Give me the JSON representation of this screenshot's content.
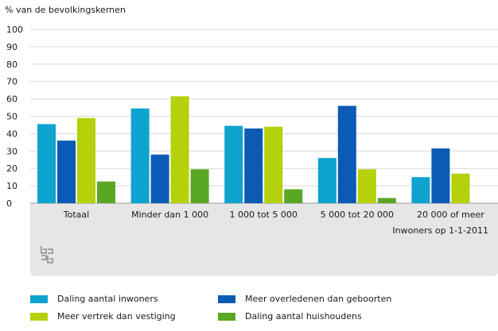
{
  "chart_data": {
    "type": "bar",
    "ylabel": "% van de bevolkingskernen",
    "xlabel": "Inwoners op 1-1-2011",
    "ylim": [
      0,
      100
    ],
    "yticks": [
      0,
      10,
      20,
      30,
      40,
      50,
      60,
      70,
      80,
      90,
      100
    ],
    "categories": [
      "Totaal",
      "Minder dan 1 000",
      "1 000 tot 5 000",
      "5 000 tot 20 000",
      "20 000 of meer"
    ],
    "series": [
      {
        "name": "Daling aantal inwoners",
        "color": "#0fa3cf",
        "values": [
          45.5,
          54.5,
          44.5,
          26,
          15
        ]
      },
      {
        "name": "Meer overledenen dan geboorten",
        "color": "#0b5bb5",
        "values": [
          36,
          28,
          43,
          56,
          31.5
        ]
      },
      {
        "name": "Meer vertrek dan vestiging",
        "color": "#b4d10b",
        "values": [
          49,
          61.5,
          44,
          19.5,
          17
        ]
      },
      {
        "name": "Daling aantal huishoudens",
        "color": "#5aa625",
        "values": [
          12.5,
          19.5,
          8,
          3,
          0
        ]
      }
    ]
  }
}
